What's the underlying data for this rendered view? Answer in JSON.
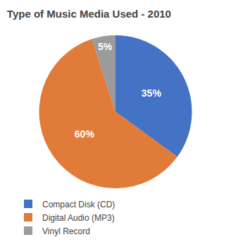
{
  "chart_data": {
    "type": "pie",
    "title": "Type of Music Media Used - 2010",
    "categories": [
      "Compact Disk (CD)",
      "Digital Audio (MP3)",
      "Vinyl Record"
    ],
    "values": [
      35,
      60,
      5
    ],
    "value_labels": [
      "35%",
      "60%",
      "5%"
    ],
    "colors": [
      "#4472C4",
      "#E07B39",
      "#9B9B9B"
    ],
    "data_labels": true,
    "legend": "bottom"
  }
}
